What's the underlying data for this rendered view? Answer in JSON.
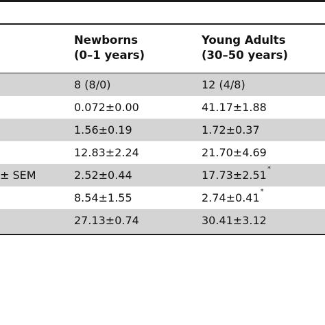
{
  "table": {
    "columns": [
      {
        "line1": "Newborns",
        "line2": "(0–1 years)"
      },
      {
        "line1": "Young Adults",
        "line2": "(30–50 years)"
      }
    ],
    "rows": [
      {
        "label": "",
        "newborns": "8 (8/0)",
        "adults": "12 (4/8)",
        "adults_mark": "",
        "shaded": true
      },
      {
        "label": "",
        "newborns": "0.072±0.00",
        "adults": "41.17±1.88",
        "adults_mark": "",
        "shaded": false
      },
      {
        "label": "",
        "newborns": "1.56±0.19",
        "adults": "1.72±0.37",
        "adults_mark": "",
        "shaded": true
      },
      {
        "label": "",
        "newborns": "12.83±2.24",
        "adults": "21.70±4.69",
        "adults_mark": "",
        "shaded": false
      },
      {
        "label": "± SEM",
        "newborns": "2.52±0.44",
        "adults": "17.73±2.51",
        "adults_mark": "*",
        "shaded": true
      },
      {
        "label": "",
        "newborns": "8.54±1.55",
        "adults": "2.74±0.41",
        "adults_mark": "*",
        "shaded": false
      },
      {
        "label": "",
        "newborns": "27.13±0.74",
        "adults": "30.41±3.12",
        "adults_mark": "",
        "shaded": true
      }
    ]
  }
}
